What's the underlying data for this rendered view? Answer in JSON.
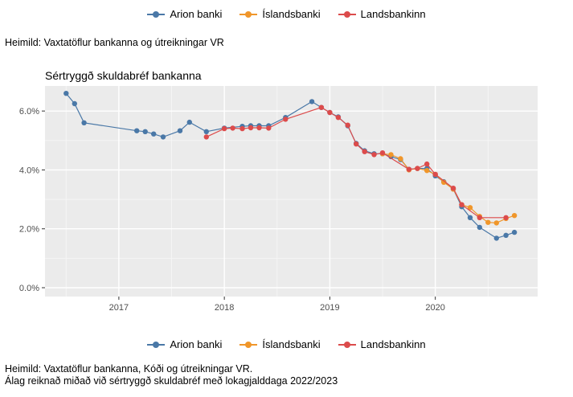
{
  "top_legend": [
    {
      "label": "Arion banki",
      "color": "#4a78a7"
    },
    {
      "label": "Íslandsbanki",
      "color": "#f0962a"
    },
    {
      "label": "Landsbankinn",
      "color": "#dc4b4b"
    }
  ],
  "source_top": "Heimild: Vaxtatöflur bankanna og útreikningar VR",
  "bottom_legend": [
    {
      "label": "Arion banki",
      "color": "#4a78a7"
    },
    {
      "label": "Íslandsbanki",
      "color": "#f0962a"
    },
    {
      "label": "Landsbankinn",
      "color": "#dc4b4b"
    }
  ],
  "source_bottom_1": "Heimild: Vaxtatöflur bankanna, Kóði og útreikningar VR.",
  "source_bottom_2": "Álag reiknað miðað við sértryggð skuldabréf með lokagjalddaga 2022/2023",
  "chart_data": {
    "type": "line",
    "title": "Sértryggð skuldabréf bankanna",
    "xlabel": "",
    "ylabel": "",
    "xlim": [
      2016.3,
      2020.97
    ],
    "ylim": [
      -0.003,
      0.0685
    ],
    "x_ticks": [
      2017,
      2018,
      2019,
      2020
    ],
    "x_tick_labels": [
      "2017",
      "2018",
      "2019",
      "2020"
    ],
    "y_ticks": [
      0,
      0.02,
      0.04,
      0.06
    ],
    "y_tick_labels": [
      "0.0%",
      "2.0%",
      "4.0%",
      "6.0%"
    ],
    "grid": true,
    "background": "#ebebeb",
    "series": [
      {
        "name": "Arion banki",
        "color": "#4a78a7",
        "x": [
          2016.5,
          2016.58,
          2016.67,
          2017.17,
          2017.25,
          2017.33,
          2017.42,
          2017.58,
          2017.67,
          2017.83,
          2018.0,
          2018.17,
          2018.25,
          2018.33,
          2018.42,
          2018.58,
          2018.83,
          2018.92,
          2019.0,
          2019.08,
          2019.17,
          2019.25,
          2019.33,
          2019.42,
          2019.5,
          2019.58,
          2019.67,
          2019.75,
          2019.83,
          2019.92,
          2020.0,
          2020.08,
          2020.17,
          2020.25,
          2020.33,
          2020.42,
          2020.58,
          2020.67,
          2020.75
        ],
        "y": [
          0.066,
          0.0625,
          0.056,
          0.0533,
          0.053,
          0.0522,
          0.0512,
          0.0533,
          0.0562,
          0.053,
          0.0542,
          0.0548,
          0.055,
          0.055,
          0.055,
          0.0578,
          0.0632,
          0.0612,
          0.0595,
          0.058,
          0.055,
          0.049,
          0.0465,
          0.0455,
          0.0455,
          0.0445,
          0.0435,
          0.0402,
          0.0405,
          0.0405,
          0.038,
          0.036,
          0.0335,
          0.0275,
          0.0238,
          0.0205,
          0.0168,
          0.0178,
          0.0188
        ]
      },
      {
        "name": "Íslandsbanki",
        "color": "#f0962a",
        "x": [
          2019.5,
          2019.58,
          2019.67,
          2019.75,
          2019.83,
          2019.92,
          2020.0,
          2020.08,
          2020.17,
          2020.25,
          2020.33,
          2020.42,
          2020.5,
          2020.58,
          2020.67,
          2020.75
        ],
        "y": [
          0.0455,
          0.0452,
          0.0438,
          0.04,
          0.0405,
          0.0398,
          0.0385,
          0.0358,
          0.0335,
          0.0282,
          0.0272,
          0.0242,
          0.0222,
          0.022,
          0.0235,
          0.0245
        ]
      },
      {
        "name": "Landsbankinn",
        "color": "#dc4b4b",
        "x": [
          2017.83,
          2018.0,
          2018.08,
          2018.17,
          2018.25,
          2018.33,
          2018.42,
          2018.58,
          2018.92,
          2019.0,
          2019.08,
          2019.17,
          2019.25,
          2019.33,
          2019.42,
          2019.5,
          2019.75,
          2019.83,
          2019.92,
          2020.0,
          2020.17,
          2020.25,
          2020.42,
          2020.67
        ],
        "y": [
          0.0512,
          0.054,
          0.0542,
          0.054,
          0.0543,
          0.0543,
          0.0542,
          0.0572,
          0.0612,
          0.0595,
          0.0578,
          0.0552,
          0.0488,
          0.0462,
          0.0452,
          0.0458,
          0.0402,
          0.0405,
          0.042,
          0.0385,
          0.0338,
          0.0282,
          0.0238,
          0.0238
        ]
      }
    ]
  }
}
